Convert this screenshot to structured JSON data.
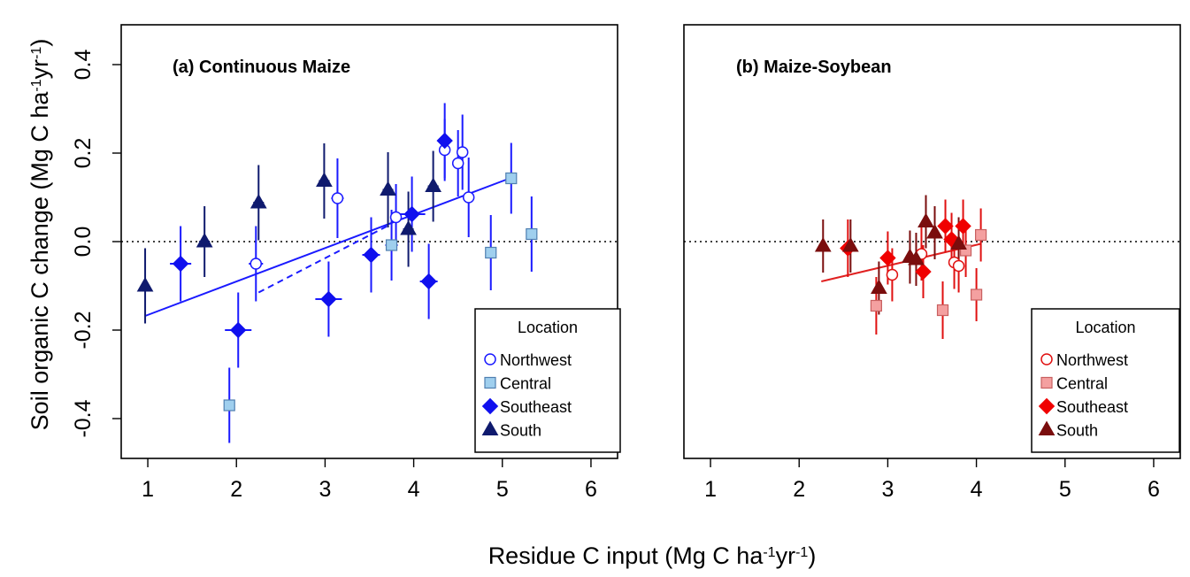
{
  "figure": {
    "ylabel": "Soil organic C change (Mg C ha-1 yr-1)",
    "xlabel": "Residue C input (Mg C ha-1yr-1)",
    "ylabel_parts": [
      "Soil organic C change (Mg C ha",
      "-1",
      "yr",
      "-1",
      ")"
    ],
    "xlabel_parts": [
      "Residue C input (Mg C ha",
      "-1",
      "yr",
      "-1",
      ")"
    ]
  },
  "colors": {
    "cm_line": "#1a1aff",
    "ms_line": "#e02020",
    "northwest_cm": "#1a1aff",
    "central_cm": "#9fcfee",
    "southeast_cm": "#1010ee",
    "south_cm": "#0f1a6e",
    "northwest_ms": "#e01010",
    "central_ms": "#f4a0a0",
    "southeast_ms": "#f00000",
    "south_ms": "#7a0d0d"
  },
  "chart_data": [
    {
      "type": "scatter",
      "title": "(a) Continuous Maize",
      "xlim": [
        0.7,
        6.3
      ],
      "ylim": [
        -0.49,
        0.49
      ],
      "xticks": [
        "1",
        "2",
        "3",
        "4",
        "5",
        "6"
      ],
      "yticks": [
        "-0.4",
        "-0.2",
        "0.0",
        "0.2",
        "0.4"
      ],
      "xtick_values": [
        1,
        2,
        3,
        4,
        5,
        6
      ],
      "ytick_values": [
        -0.4,
        -0.2,
        0.0,
        0.2,
        0.4
      ],
      "grid": false,
      "reference_line": {
        "y": 0.0,
        "style": "dotted"
      },
      "legend": {
        "title": "Location",
        "position": "bottom-right",
        "entries": [
          "Northwest",
          "Central",
          "Southeast",
          "South"
        ]
      },
      "regression_lines": [
        {
          "style": "solid",
          "x": [
            0.97,
            5.15
          ],
          "y": [
            -0.168,
            0.148
          ]
        },
        {
          "style": "dashed",
          "x": [
            2.25,
            3.75
          ],
          "y": [
            -0.115,
            0.04
          ]
        }
      ],
      "series": [
        {
          "name": "Northwest",
          "marker": "circle",
          "points": [
            {
              "x": 2.22,
              "y": -0.05,
              "xerr": 0.08,
              "yerr": 0.085
            },
            {
              "x": 3.14,
              "y": 0.098,
              "xerr": 0.07,
              "yerr": 0.09
            },
            {
              "x": 3.8,
              "y": 0.055,
              "xerr": 0.06,
              "yerr": 0.075
            },
            {
              "x": 4.35,
              "y": 0.207,
              "xerr": 0.06,
              "yerr": 0.07
            },
            {
              "x": 4.5,
              "y": 0.177,
              "xerr": 0.06,
              "yerr": 0.075
            },
            {
              "x": 4.55,
              "y": 0.202,
              "xerr": 0.06,
              "yerr": 0.085
            },
            {
              "x": 4.62,
              "y": 0.1,
              "xerr": 0.06,
              "yerr": 0.09
            }
          ]
        },
        {
          "name": "Central",
          "marker": "square",
          "points": [
            {
              "x": 1.92,
              "y": -0.37,
              "xerr": 0.06,
              "yerr": 0.085
            },
            {
              "x": 3.75,
              "y": -0.008,
              "xerr": 0.07,
              "yerr": 0.08
            },
            {
              "x": 4.87,
              "y": -0.025,
              "xerr": 0.06,
              "yerr": 0.085
            },
            {
              "x": 5.1,
              "y": 0.143,
              "xerr": 0.06,
              "yerr": 0.08
            },
            {
              "x": 5.33,
              "y": 0.017,
              "xerr": 0.06,
              "yerr": 0.085
            }
          ]
        },
        {
          "name": "Southeast",
          "marker": "diamond",
          "points": [
            {
              "x": 1.37,
              "y": -0.05,
              "xerr": 0.12,
              "yerr": 0.085
            },
            {
              "x": 2.02,
              "y": -0.2,
              "xerr": 0.15,
              "yerr": 0.085
            },
            {
              "x": 3.04,
              "y": -0.13,
              "xerr": 0.15,
              "yerr": 0.085
            },
            {
              "x": 3.52,
              "y": -0.03,
              "xerr": 0.1,
              "yerr": 0.085
            },
            {
              "x": 3.98,
              "y": 0.062,
              "xerr": 0.15,
              "yerr": 0.085
            },
            {
              "x": 4.17,
              "y": -0.09,
              "xerr": 0.1,
              "yerr": 0.085
            },
            {
              "x": 4.35,
              "y": 0.228,
              "xerr": 0.08,
              "yerr": 0.085
            }
          ]
        },
        {
          "name": "South",
          "marker": "triangle",
          "points": [
            {
              "x": 0.97,
              "y": -0.1,
              "xerr": 0.05,
              "yerr": 0.085
            },
            {
              "x": 1.64,
              "y": 0.0,
              "xerr": 0.06,
              "yerr": 0.08
            },
            {
              "x": 2.25,
              "y": 0.088,
              "xerr": 0.06,
              "yerr": 0.085
            },
            {
              "x": 2.99,
              "y": 0.137,
              "xerr": 0.06,
              "yerr": 0.085
            },
            {
              "x": 3.71,
              "y": 0.117,
              "xerr": 0.06,
              "yerr": 0.085
            },
            {
              "x": 3.94,
              "y": 0.028,
              "xerr": 0.06,
              "yerr": 0.085
            },
            {
              "x": 4.22,
              "y": 0.125,
              "xerr": 0.06,
              "yerr": 0.08
            }
          ]
        }
      ]
    },
    {
      "type": "scatter",
      "title": "(b) Maize-Soybean",
      "xlim": [
        0.7,
        6.3
      ],
      "ylim": [
        -0.49,
        0.49
      ],
      "xticks": [
        "1",
        "2",
        "3",
        "4",
        "5",
        "6"
      ],
      "yticks": [],
      "xtick_values": [
        1,
        2,
        3,
        4,
        5,
        6
      ],
      "ytick_values": [
        -0.4,
        -0.2,
        0.0,
        0.2,
        0.4
      ],
      "grid": false,
      "reference_line": {
        "y": 0.0,
        "style": "dotted"
      },
      "legend": {
        "title": "Location",
        "position": "bottom-right",
        "entries": [
          "Northwest",
          "Central",
          "Southeast",
          "South"
        ]
      },
      "regression_lines": [
        {
          "style": "solid",
          "x": [
            2.25,
            4.05
          ],
          "y": [
            -0.09,
            -0.005
          ]
        }
      ],
      "series": [
        {
          "name": "Northwest",
          "marker": "circle",
          "points": [
            {
              "x": 3.05,
              "y": -0.075,
              "xerr": 0.04,
              "yerr": 0.06
            },
            {
              "x": 3.38,
              "y": -0.028,
              "xerr": 0.04,
              "yerr": 0.06
            },
            {
              "x": 3.75,
              "y": -0.047,
              "xerr": 0.04,
              "yerr": 0.06
            },
            {
              "x": 3.8,
              "y": -0.055,
              "xerr": 0.04,
              "yerr": 0.06
            }
          ]
        },
        {
          "name": "Central",
          "marker": "square",
          "points": [
            {
              "x": 2.87,
              "y": -0.145,
              "xerr": 0.04,
              "yerr": 0.065
            },
            {
              "x": 3.62,
              "y": -0.155,
              "xerr": 0.04,
              "yerr": 0.065
            },
            {
              "x": 3.88,
              "y": -0.02,
              "xerr": 0.04,
              "yerr": 0.06
            },
            {
              "x": 4.0,
              "y": -0.12,
              "xerr": 0.04,
              "yerr": 0.06
            },
            {
              "x": 4.05,
              "y": 0.015,
              "xerr": 0.04,
              "yerr": 0.06
            }
          ]
        },
        {
          "name": "Southeast",
          "marker": "diamond",
          "points": [
            {
              "x": 2.55,
              "y": -0.015,
              "xerr": 0.05,
              "yerr": 0.065
            },
            {
              "x": 3.0,
              "y": -0.037,
              "xerr": 0.05,
              "yerr": 0.06
            },
            {
              "x": 3.4,
              "y": -0.068,
              "xerr": 0.05,
              "yerr": 0.06
            },
            {
              "x": 3.65,
              "y": 0.035,
              "xerr": 0.05,
              "yerr": 0.06
            },
            {
              "x": 3.72,
              "y": 0.005,
              "xerr": 0.05,
              "yerr": 0.06
            },
            {
              "x": 3.85,
              "y": 0.035,
              "xerr": 0.05,
              "yerr": 0.06
            }
          ]
        },
        {
          "name": "South",
          "marker": "triangle",
          "points": [
            {
              "x": 2.27,
              "y": -0.01,
              "xerr": 0.05,
              "yerr": 0.06
            },
            {
              "x": 2.58,
              "y": -0.01,
              "xerr": 0.05,
              "yerr": 0.06
            },
            {
              "x": 2.9,
              "y": -0.105,
              "xerr": 0.05,
              "yerr": 0.06
            },
            {
              "x": 3.25,
              "y": -0.035,
              "xerr": 0.05,
              "yerr": 0.06
            },
            {
              "x": 3.32,
              "y": -0.04,
              "xerr": 0.05,
              "yerr": 0.06
            },
            {
              "x": 3.43,
              "y": 0.045,
              "xerr": 0.05,
              "yerr": 0.06
            },
            {
              "x": 3.53,
              "y": 0.02,
              "xerr": 0.05,
              "yerr": 0.06
            },
            {
              "x": 3.8,
              "y": -0.005,
              "xerr": 0.05,
              "yerr": 0.06
            }
          ]
        }
      ]
    }
  ]
}
